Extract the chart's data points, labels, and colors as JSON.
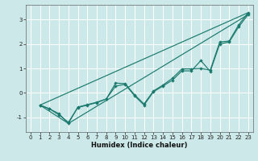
{
  "xlabel": "Humidex (Indice chaleur)",
  "bg_color": "#cce8e8",
  "grid_color": "#ffffff",
  "line_color": "#1a7a6e",
  "xlim": [
    -0.5,
    23.5
  ],
  "ylim": [
    -1.6,
    3.6
  ],
  "yticks": [
    -1,
    0,
    1,
    2,
    3
  ],
  "xticks": [
    0,
    1,
    2,
    3,
    4,
    5,
    6,
    7,
    8,
    9,
    10,
    11,
    12,
    13,
    14,
    15,
    16,
    17,
    18,
    19,
    20,
    21,
    22,
    23
  ],
  "line1_x": [
    1,
    2,
    3,
    4,
    5,
    6,
    7,
    8,
    9,
    10,
    11,
    12,
    13,
    14,
    15,
    16,
    17,
    18,
    19,
    20,
    21,
    22,
    23
  ],
  "line1_y": [
    -0.5,
    -0.65,
    -0.9,
    -1.2,
    -0.6,
    -0.5,
    -0.4,
    -0.25,
    0.4,
    0.38,
    -0.08,
    -0.45,
    0.08,
    0.32,
    0.6,
    0.98,
    0.98,
    1.0,
    0.93,
    2.08,
    2.12,
    2.78,
    3.28
  ],
  "line2_x": [
    1,
    2,
    3,
    4,
    5,
    6,
    7,
    8,
    9,
    10,
    11,
    12,
    13,
    14,
    15,
    16,
    17,
    18,
    19,
    20,
    21,
    22,
    23
  ],
  "line2_y": [
    -0.5,
    -0.65,
    -0.85,
    -1.25,
    -0.58,
    -0.48,
    -0.38,
    -0.25,
    0.28,
    0.35,
    -0.12,
    -0.5,
    0.05,
    0.28,
    0.52,
    0.9,
    0.9,
    1.32,
    0.88,
    2.0,
    2.08,
    2.7,
    3.2
  ],
  "line3_x": [
    1,
    23
  ],
  "line3_y": [
    -0.5,
    3.28
  ],
  "line4_x": [
    1,
    4,
    23
  ],
  "line4_y": [
    -0.5,
    -1.25,
    3.2
  ]
}
